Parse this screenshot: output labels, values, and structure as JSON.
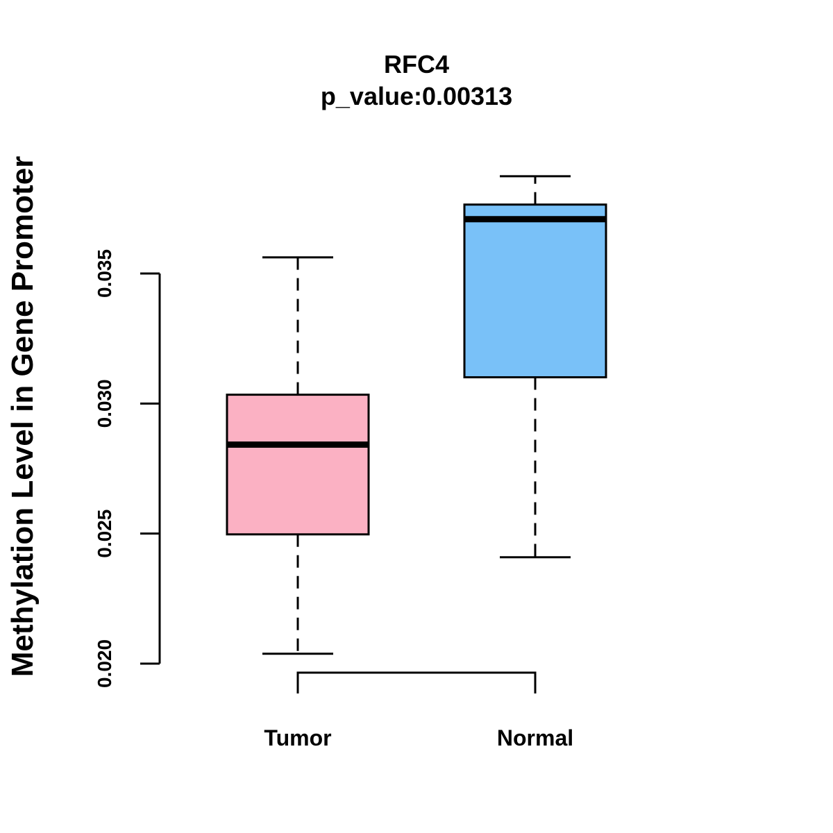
{
  "chart_data": {
    "type": "boxplot",
    "title": "RFC4",
    "subtitle": "p_value:0.00313",
    "xlabel": "",
    "ylabel": "Methylation Level in Gene Promoter",
    "ylim": [
      0.02,
      0.035
    ],
    "yticks": [
      0.02,
      0.025,
      0.03,
      0.035
    ],
    "ytick_labels": [
      "0.020",
      "0.025",
      "0.030",
      "0.035"
    ],
    "categories": [
      "Tumor",
      "Normal"
    ],
    "series": [
      {
        "name": "Tumor",
        "color": "#FBB1C3",
        "whisker_low": 0.02038,
        "q1": 0.02497,
        "median": 0.02842,
        "q3": 0.03034,
        "whisker_high": 0.03562
      },
      {
        "name": "Normal",
        "color": "#79C1F8",
        "whisker_low": 0.02409,
        "q1": 0.03101,
        "median": 0.03709,
        "q3": 0.03765,
        "whisker_high": 0.03874
      }
    ]
  }
}
